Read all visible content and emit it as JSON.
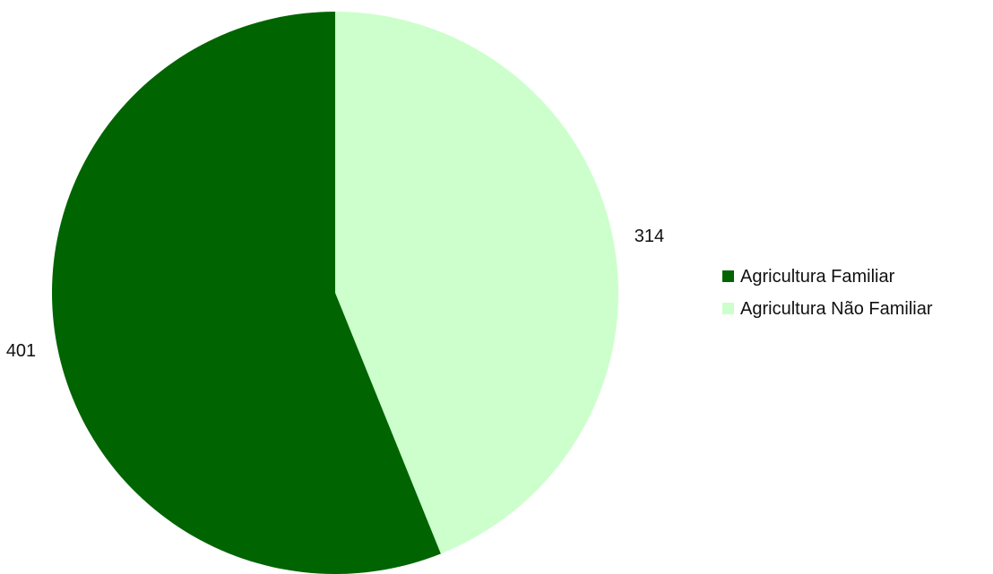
{
  "chart_data": {
    "type": "pie",
    "title": "",
    "slices": [
      {
        "label": "Agricultura Familiar",
        "value": 401,
        "value_label": "401",
        "color": "#006400"
      },
      {
        "label": "Agricultura Não Familiar",
        "value": 314,
        "value_label": "314",
        "color": "#ccffcc"
      }
    ],
    "start_angle_deg": 0,
    "direction": "clockwise",
    "legend": {
      "position": "right",
      "items": [
        "Agricultura Familiar",
        "Agricultura Não Familiar"
      ]
    }
  }
}
